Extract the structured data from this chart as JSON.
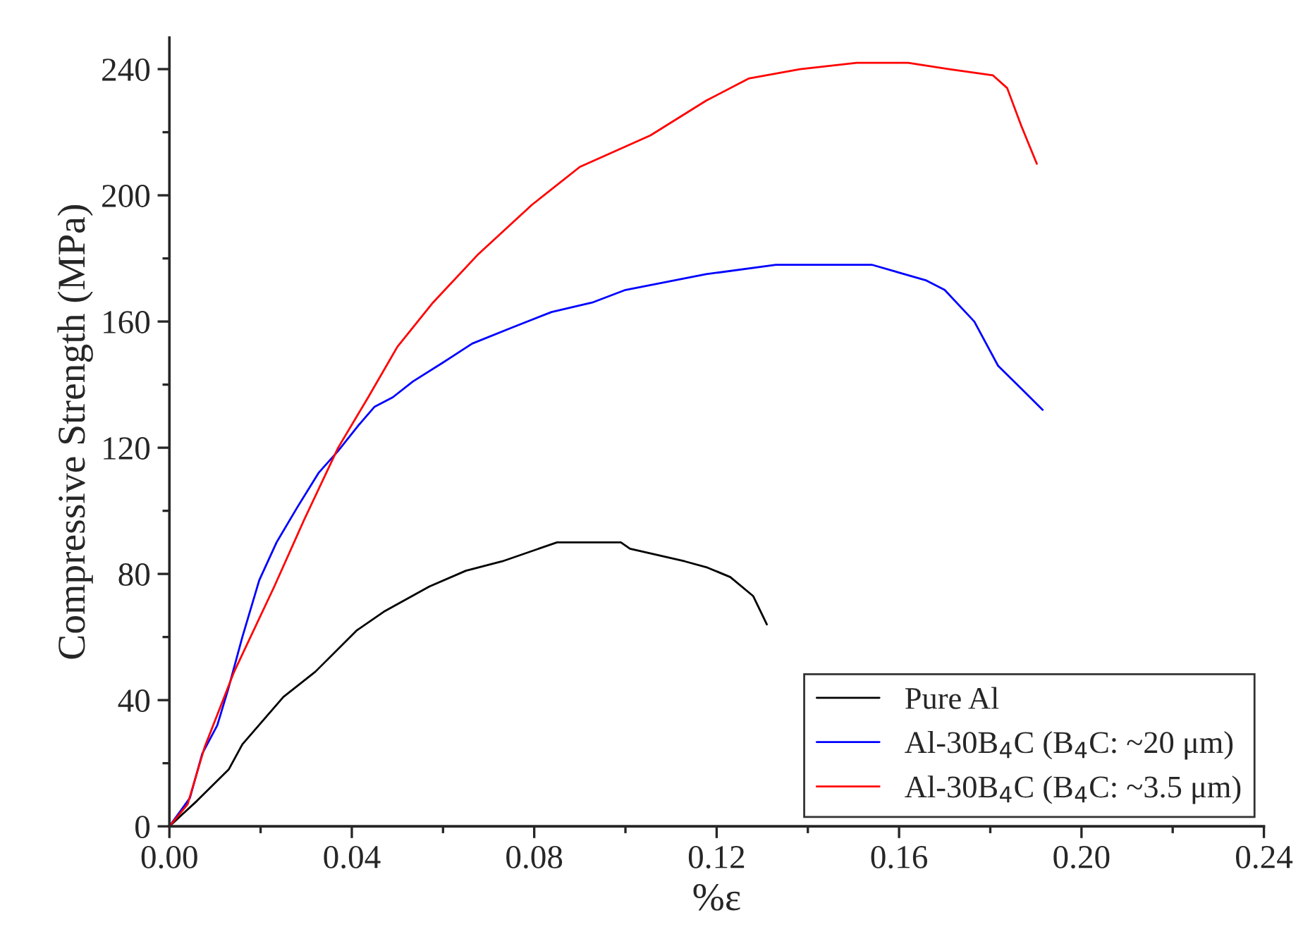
{
  "chart_data": {
    "type": "line",
    "xlabel": "%ε",
    "ylabel": "Compressive Strength (MPa)",
    "xlim": [
      0,
      0.24
    ],
    "ylim": [
      0,
      250
    ],
    "xticks": [
      {
        "value": 0,
        "label": "0.00"
      },
      {
        "value": 0.04,
        "label": "0.04"
      },
      {
        "value": 0.08,
        "label": "0.08"
      },
      {
        "value": 0.12,
        "label": "0.12"
      },
      {
        "value": 0.16,
        "label": "0.16"
      },
      {
        "value": 0.2,
        "label": "0.20"
      },
      {
        "value": 0.24,
        "label": "0.24"
      }
    ],
    "yticks": [
      0,
      40,
      80,
      120,
      160,
      200,
      240
    ],
    "grid": false,
    "legend": "bottom right",
    "marker": "none",
    "line_style": "solid",
    "series": [
      {
        "name": "Pure Al",
        "color": "#000000",
        "x": [
          0,
          0.006,
          0.013,
          0.016,
          0.025,
          0.032,
          0.041,
          0.047,
          0.057,
          0.065,
          0.073,
          0.085,
          0.099,
          0.101,
          0.113,
          0.118,
          0.123,
          0.128,
          0.131
        ],
        "values": [
          0,
          8,
          18,
          26,
          41,
          49,
          62,
          68,
          76,
          81,
          84,
          90,
          90,
          88,
          84,
          82,
          79,
          73,
          64
        ]
      },
      {
        "name": "Al-30B$_{4}$C (B$_{4}$C: ~20 μm)",
        "color": "#0000ff",
        "x": [
          0,
          0.0045,
          0.0072,
          0.0105,
          0.013,
          0.016,
          0.0197,
          0.0235,
          0.028,
          0.0327,
          0.037,
          0.0414,
          0.045,
          0.049,
          0.0534,
          0.06,
          0.0664,
          0.075,
          0.0838,
          0.0927,
          0.1,
          0.1177,
          0.133,
          0.1435,
          0.154,
          0.166,
          0.17,
          0.1765,
          0.1817,
          0.1873,
          0.1915
        ],
        "values": [
          0,
          9,
          23,
          32,
          44,
          60,
          78,
          90,
          101,
          112,
          119,
          127,
          133,
          136,
          141,
          147,
          153,
          158,
          163,
          166,
          170,
          175,
          178,
          178,
          178,
          173,
          170,
          160,
          146,
          138,
          132
        ]
      },
      {
        "name": "Al-30B$_{4}$C (B$_{4}$C: ~3.5 μm)",
        "color": "#ff0000",
        "x": [
          0,
          0.004,
          0.0077,
          0.0142,
          0.023,
          0.0295,
          0.037,
          0.0436,
          0.05,
          0.0578,
          0.0675,
          0.0795,
          0.09,
          0.1055,
          0.1177,
          0.127,
          0.1383,
          0.1507,
          0.162,
          0.171,
          0.1806,
          0.1837,
          0.1868,
          0.1902
        ],
        "values": [
          0,
          7,
          25,
          49,
          76,
          97,
          120,
          136,
          152,
          166,
          181,
          197,
          209,
          219,
          230,
          237,
          240,
          242,
          242,
          240,
          238,
          234,
          222,
          210
        ]
      }
    ]
  }
}
